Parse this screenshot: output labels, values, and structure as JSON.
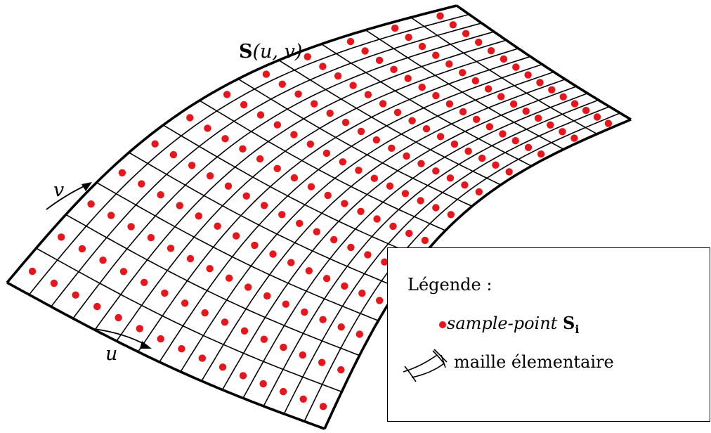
{
  "surface_label": {
    "bold": "S",
    "args": "(u, v)"
  },
  "axis_v_label": "v",
  "axis_u_label": "u",
  "mesh": {
    "rows": 12,
    "cols": 15
  },
  "colors": {
    "sample_point": "#e8151b",
    "line": "#000000",
    "background": "#ffffff"
  },
  "legend": {
    "title": "Légende :",
    "items": [
      {
        "marker": "red-dot",
        "label_italic": "sample-point",
        "label_bold": "S",
        "label_sub": "i"
      },
      {
        "marker": "mesh-cell-icon",
        "label": "maille élementaire"
      }
    ]
  }
}
